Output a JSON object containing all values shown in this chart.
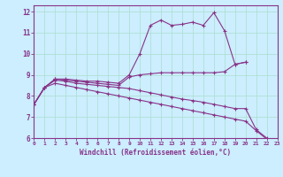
{
  "xlabel": "Windchill (Refroidissement éolien,°C)",
  "background_color": "#cceeff",
  "grid_color": "#aaddcc",
  "line_color": "#883388",
  "xlim": [
    0,
    23
  ],
  "ylim": [
    6,
    12.3
  ],
  "xticks": [
    0,
    1,
    2,
    3,
    4,
    5,
    6,
    7,
    8,
    9,
    10,
    11,
    12,
    13,
    14,
    15,
    16,
    17,
    18,
    19,
    20,
    21,
    22,
    23
  ],
  "yticks": [
    6,
    7,
    8,
    9,
    10,
    11,
    12
  ],
  "curves": [
    {
      "x": [
        0,
        1,
        2,
        3,
        4,
        5,
        6,
        7,
        8,
        9,
        10,
        11,
        12,
        13,
        14,
        15,
        16,
        17,
        18,
        19,
        20
      ],
      "y": [
        7.6,
        8.4,
        8.8,
        8.8,
        8.75,
        8.7,
        8.7,
        8.65,
        8.6,
        9.0,
        10.0,
        11.35,
        11.6,
        11.35,
        11.4,
        11.5,
        11.35,
        11.95,
        11.1,
        9.5,
        9.6
      ]
    },
    {
      "x": [
        0,
        1,
        2,
        3,
        4,
        5,
        6,
        7,
        8,
        9,
        10,
        11,
        12,
        13,
        14,
        15,
        16,
        17,
        18,
        19,
        20
      ],
      "y": [
        7.6,
        8.4,
        8.8,
        8.75,
        8.7,
        8.65,
        8.6,
        8.55,
        8.5,
        8.9,
        9.0,
        9.05,
        9.1,
        9.1,
        9.1,
        9.1,
        9.1,
        9.1,
        9.15,
        9.5,
        9.6
      ]
    },
    {
      "x": [
        0,
        1,
        2,
        3,
        4,
        5,
        6,
        7,
        8,
        9,
        10,
        11,
        12,
        13,
        14,
        15,
        16,
        17,
        18,
        19,
        20,
        21,
        22,
        23
      ],
      "y": [
        7.6,
        8.4,
        8.75,
        8.7,
        8.6,
        8.55,
        8.5,
        8.45,
        8.4,
        8.35,
        8.25,
        8.15,
        8.05,
        7.95,
        7.85,
        7.78,
        7.7,
        7.6,
        7.5,
        7.4,
        7.4,
        6.4,
        6.0,
        5.75
      ]
    },
    {
      "x": [
        0,
        1,
        2,
        3,
        4,
        5,
        6,
        7,
        8,
        9,
        10,
        11,
        12,
        13,
        14,
        15,
        16,
        17,
        18,
        19,
        20,
        21,
        22,
        23
      ],
      "y": [
        7.6,
        8.4,
        8.6,
        8.5,
        8.4,
        8.3,
        8.2,
        8.1,
        8.0,
        7.9,
        7.8,
        7.7,
        7.6,
        7.5,
        7.4,
        7.3,
        7.2,
        7.1,
        7.0,
        6.9,
        6.8,
        6.35,
        5.95,
        5.75
      ]
    }
  ]
}
